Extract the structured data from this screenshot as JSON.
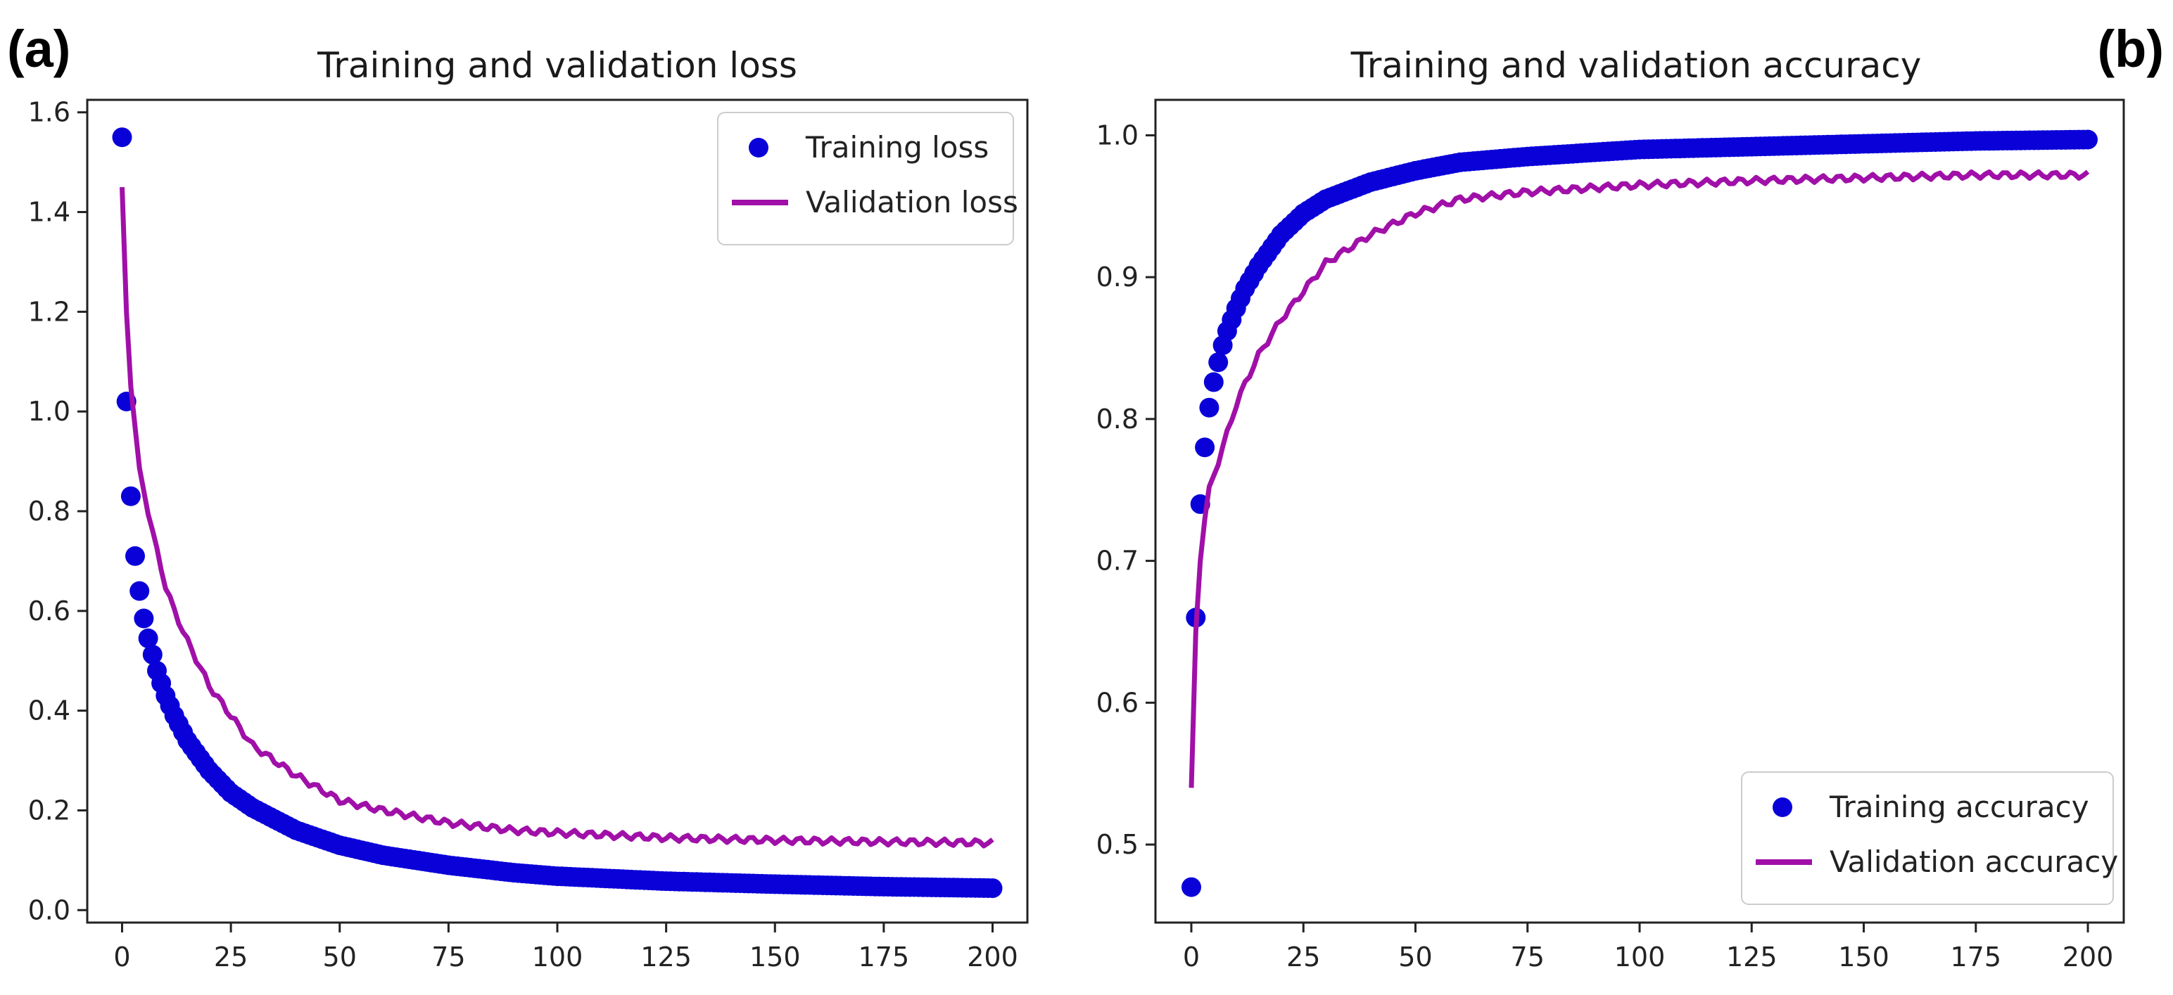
{
  "chart_data": [
    {
      "panel_label": "(a)",
      "type": "line",
      "title": "Training and validation loss",
      "xlabel": "",
      "ylabel": "",
      "xlim": [
        -8,
        208
      ],
      "ylim": [
        -0.025,
        1.625
      ],
      "xticks": [
        0,
        25,
        50,
        75,
        100,
        125,
        150,
        175,
        200
      ],
      "xtick_labels": [
        "0",
        "25",
        "50",
        "75",
        "100",
        "125",
        "150",
        "175",
        "200"
      ],
      "yticks": [
        0.0,
        0.2,
        0.4,
        0.6,
        0.8,
        1.0,
        1.2,
        1.4,
        1.6
      ],
      "ytick_labels": [
        "0.0",
        "0.2",
        "0.4",
        "0.6",
        "0.8",
        "1.0",
        "1.2",
        "1.4",
        "1.6"
      ],
      "grid": false,
      "legend_position": "top-right",
      "series": [
        {
          "name": "Training loss",
          "style": "markers",
          "color": "#0a00d8",
          "x": [
            0,
            1,
            2,
            3,
            4,
            5,
            6,
            8,
            10,
            12,
            15,
            20,
            25,
            30,
            40,
            50,
            60,
            75,
            90,
            100,
            125,
            150,
            175,
            200
          ],
          "values": [
            1.55,
            1.02,
            0.83,
            0.71,
            0.64,
            0.585,
            0.545,
            0.48,
            0.43,
            0.39,
            0.34,
            0.28,
            0.235,
            0.205,
            0.16,
            0.13,
            0.11,
            0.09,
            0.075,
            0.068,
            0.058,
            0.052,
            0.047,
            0.044
          ]
        },
        {
          "name": "Validation loss",
          "style": "line",
          "color": "#a010a8",
          "x": [
            0,
            1,
            2,
            3,
            4,
            5,
            6,
            8,
            10,
            12,
            15,
            20,
            25,
            30,
            40,
            50,
            60,
            75,
            90,
            100,
            125,
            150,
            175,
            200
          ],
          "values": [
            1.45,
            1.2,
            1.05,
            0.97,
            0.88,
            0.84,
            0.8,
            0.72,
            0.65,
            0.6,
            0.54,
            0.45,
            0.39,
            0.33,
            0.27,
            0.22,
            0.2,
            0.175,
            0.16,
            0.155,
            0.145,
            0.14,
            0.137,
            0.135
          ]
        }
      ]
    },
    {
      "panel_label": "(b)",
      "type": "line",
      "title": "Training and validation accuracy",
      "xlabel": "",
      "ylabel": "",
      "xlim": [
        -8,
        208
      ],
      "ylim": [
        0.445,
        1.025
      ],
      "xticks": [
        0,
        25,
        50,
        75,
        100,
        125,
        150,
        175,
        200
      ],
      "xtick_labels": [
        "0",
        "25",
        "50",
        "75",
        "100",
        "125",
        "150",
        "175",
        "200"
      ],
      "yticks": [
        0.5,
        0.6,
        0.7,
        0.8,
        0.9,
        1.0
      ],
      "ytick_labels": [
        "0.5",
        "0.6",
        "0.7",
        "0.8",
        "0.9",
        "1.0"
      ],
      "grid": false,
      "legend_position": "bottom-right",
      "series": [
        {
          "name": "Training accuracy",
          "style": "markers",
          "color": "#0a00d8",
          "x": [
            0,
            1,
            2,
            3,
            4,
            5,
            6,
            7,
            8,
            10,
            12,
            15,
            20,
            25,
            30,
            40,
            50,
            60,
            75,
            100,
            125,
            150,
            175,
            200
          ],
          "values": [
            0.47,
            0.66,
            0.74,
            0.78,
            0.808,
            0.826,
            0.84,
            0.852,
            0.862,
            0.878,
            0.892,
            0.908,
            0.93,
            0.945,
            0.955,
            0.967,
            0.975,
            0.981,
            0.985,
            0.99,
            0.992,
            0.994,
            0.996,
            0.997
          ]
        },
        {
          "name": "Validation accuracy",
          "style": "line",
          "color": "#a010a8",
          "x": [
            0,
            1,
            2,
            3,
            4,
            5,
            6,
            8,
            10,
            12,
            15,
            20,
            25,
            30,
            40,
            50,
            60,
            75,
            100,
            125,
            150,
            175,
            200
          ],
          "values": [
            0.54,
            0.65,
            0.7,
            0.73,
            0.75,
            0.76,
            0.77,
            0.79,
            0.81,
            0.825,
            0.845,
            0.87,
            0.89,
            0.91,
            0.93,
            0.945,
            0.955,
            0.96,
            0.965,
            0.968,
            0.97,
            0.972,
            0.972
          ]
        }
      ]
    }
  ]
}
